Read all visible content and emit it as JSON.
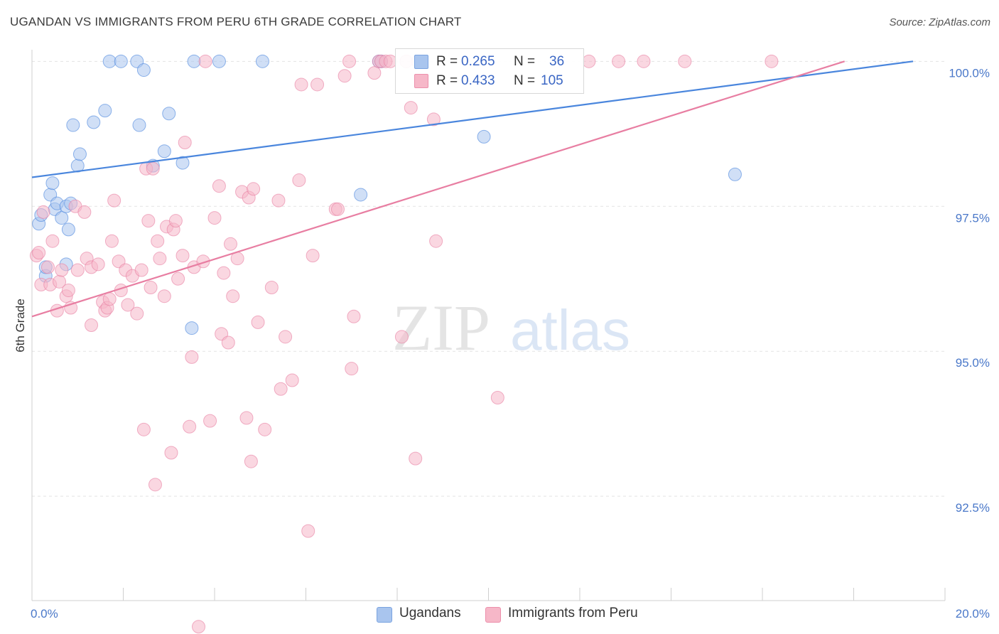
{
  "header": {
    "title": "UGANDAN VS IMMIGRANTS FROM PERU 6TH GRADE CORRELATION CHART",
    "source": "Source: ZipAtlas.com"
  },
  "watermark": {
    "zip": "ZIP",
    "atlas": "atlas"
  },
  "legend": {
    "r_label": "R =",
    "n_label": "N =",
    "rows": [
      {
        "r": "0.265",
        "n": "36",
        "color": "#a9c5ee"
      },
      {
        "r": "0.433",
        "n": "105",
        "color": "#f6b7c8"
      }
    ]
  },
  "bottom_legend": [
    "Ugandans",
    "Immigrants from Peru"
  ],
  "chart_data": {
    "type": "scatter",
    "title": "UGANDAN VS IMMIGRANTS FROM PERU 6TH GRADE CORRELATION CHART",
    "xlabel": "",
    "ylabel": "6th Grade",
    "xlim": [
      0,
      20
    ],
    "ylim": [
      90.7,
      100.2
    ],
    "x_tick_labels": [
      "0.0%",
      "20.0%"
    ],
    "y_ticks": [
      92.5,
      95.0,
      97.5,
      100.0
    ],
    "y_tick_labels": [
      "92.5%",
      "95.0%",
      "97.5%",
      "100.0%"
    ],
    "grid": "horizontal dashed",
    "series": [
      {
        "name": "Ugandans",
        "color": "#4a86dd",
        "fill": "#a9c5ee",
        "trend": [
          [
            0,
            98.0
          ],
          [
            19.3,
            100.0
          ]
        ],
        "points": [
          [
            0.3,
            96.3
          ],
          [
            0.15,
            97.2
          ],
          [
            0.2,
            97.35
          ],
          [
            0.3,
            96.45
          ],
          [
            0.4,
            97.7
          ],
          [
            0.45,
            97.9
          ],
          [
            0.5,
            97.45
          ],
          [
            0.55,
            97.55
          ],
          [
            0.65,
            97.3
          ],
          [
            0.75,
            97.5
          ],
          [
            0.75,
            96.5
          ],
          [
            0.8,
            97.1
          ],
          [
            0.85,
            97.55
          ],
          [
            0.9,
            98.9
          ],
          [
            1.0,
            98.2
          ],
          [
            1.05,
            98.4
          ],
          [
            1.35,
            98.95
          ],
          [
            1.6,
            99.15
          ],
          [
            1.7,
            100.0
          ],
          [
            1.95,
            100.0
          ],
          [
            2.3,
            100.0
          ],
          [
            2.35,
            98.9
          ],
          [
            2.45,
            99.85
          ],
          [
            2.65,
            98.2
          ],
          [
            2.9,
            98.45
          ],
          [
            3.0,
            99.1
          ],
          [
            3.3,
            98.25
          ],
          [
            3.5,
            95.4
          ],
          [
            3.55,
            100.0
          ],
          [
            4.1,
            100.0
          ],
          [
            5.05,
            100.0
          ],
          [
            7.2,
            97.7
          ],
          [
            7.6,
            100.0
          ],
          [
            7.65,
            100.0
          ],
          [
            9.9,
            98.7
          ],
          [
            15.4,
            98.05
          ]
        ]
      },
      {
        "name": "Immigrants from Peru",
        "color": "#e87ea2",
        "fill": "#f6b7c8",
        "trend": [
          [
            0,
            95.6
          ],
          [
            17.8,
            100.0
          ]
        ],
        "points": [
          [
            0.1,
            96.65
          ],
          [
            0.15,
            96.7
          ],
          [
            0.2,
            96.15
          ],
          [
            0.25,
            97.4
          ],
          [
            0.35,
            96.45
          ],
          [
            0.4,
            96.15
          ],
          [
            0.45,
            96.9
          ],
          [
            0.55,
            95.7
          ],
          [
            0.6,
            96.2
          ],
          [
            0.65,
            96.4
          ],
          [
            0.75,
            95.95
          ],
          [
            0.8,
            96.05
          ],
          [
            0.85,
            95.75
          ],
          [
            0.95,
            97.5
          ],
          [
            1.0,
            96.4
          ],
          [
            1.15,
            97.4
          ],
          [
            1.2,
            96.6
          ],
          [
            1.3,
            96.45
          ],
          [
            1.3,
            95.45
          ],
          [
            1.45,
            96.5
          ],
          [
            1.55,
            95.85
          ],
          [
            1.6,
            95.7
          ],
          [
            1.65,
            95.75
          ],
          [
            1.7,
            95.9
          ],
          [
            1.75,
            96.9
          ],
          [
            1.8,
            97.6
          ],
          [
            1.9,
            96.55
          ],
          [
            1.95,
            96.05
          ],
          [
            2.05,
            96.4
          ],
          [
            2.1,
            95.8
          ],
          [
            2.2,
            96.3
          ],
          [
            2.3,
            95.65
          ],
          [
            2.4,
            96.4
          ],
          [
            2.45,
            93.65
          ],
          [
            2.5,
            98.15
          ],
          [
            2.55,
            97.25
          ],
          [
            2.6,
            96.1
          ],
          [
            2.65,
            98.15
          ],
          [
            2.7,
            92.7
          ],
          [
            2.75,
            96.9
          ],
          [
            2.8,
            96.6
          ],
          [
            2.9,
            95.95
          ],
          [
            2.95,
            97.15
          ],
          [
            3.05,
            93.25
          ],
          [
            3.1,
            97.1
          ],
          [
            3.15,
            97.25
          ],
          [
            3.2,
            96.25
          ],
          [
            3.3,
            96.65
          ],
          [
            3.35,
            98.6
          ],
          [
            3.45,
            93.7
          ],
          [
            3.5,
            94.9
          ],
          [
            3.55,
            96.45
          ],
          [
            3.65,
            90.25
          ],
          [
            3.75,
            96.55
          ],
          [
            3.8,
            100.0
          ],
          [
            3.9,
            93.8
          ],
          [
            4.0,
            97.3
          ],
          [
            4.1,
            97.85
          ],
          [
            4.15,
            95.3
          ],
          [
            4.2,
            96.35
          ],
          [
            4.3,
            95.15
          ],
          [
            4.35,
            96.85
          ],
          [
            4.4,
            95.95
          ],
          [
            4.5,
            96.6
          ],
          [
            4.6,
            97.75
          ],
          [
            4.7,
            93.85
          ],
          [
            4.75,
            97.65
          ],
          [
            4.8,
            93.1
          ],
          [
            4.85,
            97.8
          ],
          [
            4.95,
            95.5
          ],
          [
            5.1,
            93.65
          ],
          [
            5.25,
            96.1
          ],
          [
            5.4,
            97.6
          ],
          [
            5.45,
            94.35
          ],
          [
            5.55,
            95.25
          ],
          [
            5.7,
            94.5
          ],
          [
            5.85,
            97.95
          ],
          [
            5.9,
            99.6
          ],
          [
            6.05,
            91.9
          ],
          [
            6.15,
            96.65
          ],
          [
            6.25,
            99.6
          ],
          [
            6.65,
            97.45
          ],
          [
            6.7,
            97.45
          ],
          [
            6.85,
            99.75
          ],
          [
            6.95,
            100.0
          ],
          [
            7.0,
            94.7
          ],
          [
            7.05,
            95.6
          ],
          [
            7.5,
            99.8
          ],
          [
            7.6,
            100.0
          ],
          [
            7.65,
            100.0
          ],
          [
            7.75,
            100.0
          ],
          [
            7.85,
            100.0
          ],
          [
            8.1,
            95.25
          ],
          [
            8.2,
            100.0
          ],
          [
            8.3,
            99.2
          ],
          [
            8.4,
            93.15
          ],
          [
            8.45,
            100.0
          ],
          [
            8.8,
            99.0
          ],
          [
            8.85,
            96.9
          ],
          [
            10.2,
            94.2
          ],
          [
            12.2,
            100.0
          ],
          [
            12.85,
            100.0
          ],
          [
            13.4,
            100.0
          ],
          [
            14.3,
            100.0
          ],
          [
            16.2,
            100.0
          ]
        ]
      }
    ]
  }
}
